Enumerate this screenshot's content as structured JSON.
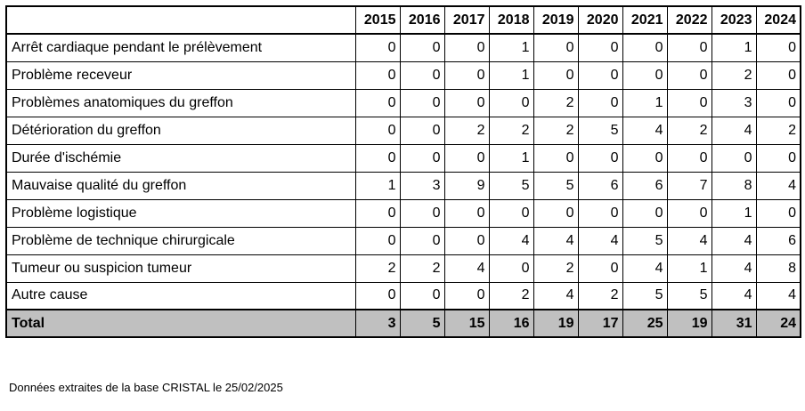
{
  "table": {
    "columns": [
      "2015",
      "2016",
      "2017",
      "2018",
      "2019",
      "2020",
      "2021",
      "2022",
      "2023",
      "2024"
    ],
    "rows": [
      {
        "label": "Arrêt cardiaque pendant le prélèvement",
        "values": [
          0,
          0,
          0,
          1,
          0,
          0,
          0,
          0,
          1,
          0
        ]
      },
      {
        "label": "Problème receveur",
        "values": [
          0,
          0,
          0,
          1,
          0,
          0,
          0,
          0,
          2,
          0
        ]
      },
      {
        "label": "Problèmes anatomiques du greffon",
        "values": [
          0,
          0,
          0,
          0,
          2,
          0,
          1,
          0,
          3,
          0
        ]
      },
      {
        "label": "Détérioration du greffon",
        "values": [
          0,
          0,
          2,
          2,
          2,
          5,
          4,
          2,
          4,
          2
        ]
      },
      {
        "label": "Durée d'ischémie",
        "values": [
          0,
          0,
          0,
          1,
          0,
          0,
          0,
          0,
          0,
          0
        ]
      },
      {
        "label": "Mauvaise qualité du greffon",
        "values": [
          1,
          3,
          9,
          5,
          5,
          6,
          6,
          7,
          8,
          4
        ]
      },
      {
        "label": "Problème logistique",
        "values": [
          0,
          0,
          0,
          0,
          0,
          0,
          0,
          0,
          1,
          0
        ]
      },
      {
        "label": "Problème de technique chirurgicale",
        "values": [
          0,
          0,
          0,
          4,
          4,
          4,
          5,
          4,
          4,
          6
        ]
      },
      {
        "label": "Tumeur ou suspicion tumeur",
        "values": [
          2,
          2,
          4,
          0,
          2,
          0,
          4,
          1,
          4,
          8
        ]
      },
      {
        "label": "Autre cause",
        "values": [
          0,
          0,
          0,
          2,
          4,
          2,
          5,
          5,
          4,
          4
        ]
      }
    ],
    "total": {
      "label": "Total",
      "values": [
        3,
        5,
        15,
        16,
        19,
        17,
        25,
        19,
        31,
        24
      ]
    }
  },
  "footnote": "Données extraites de la base CRISTAL le 25/02/2025"
}
